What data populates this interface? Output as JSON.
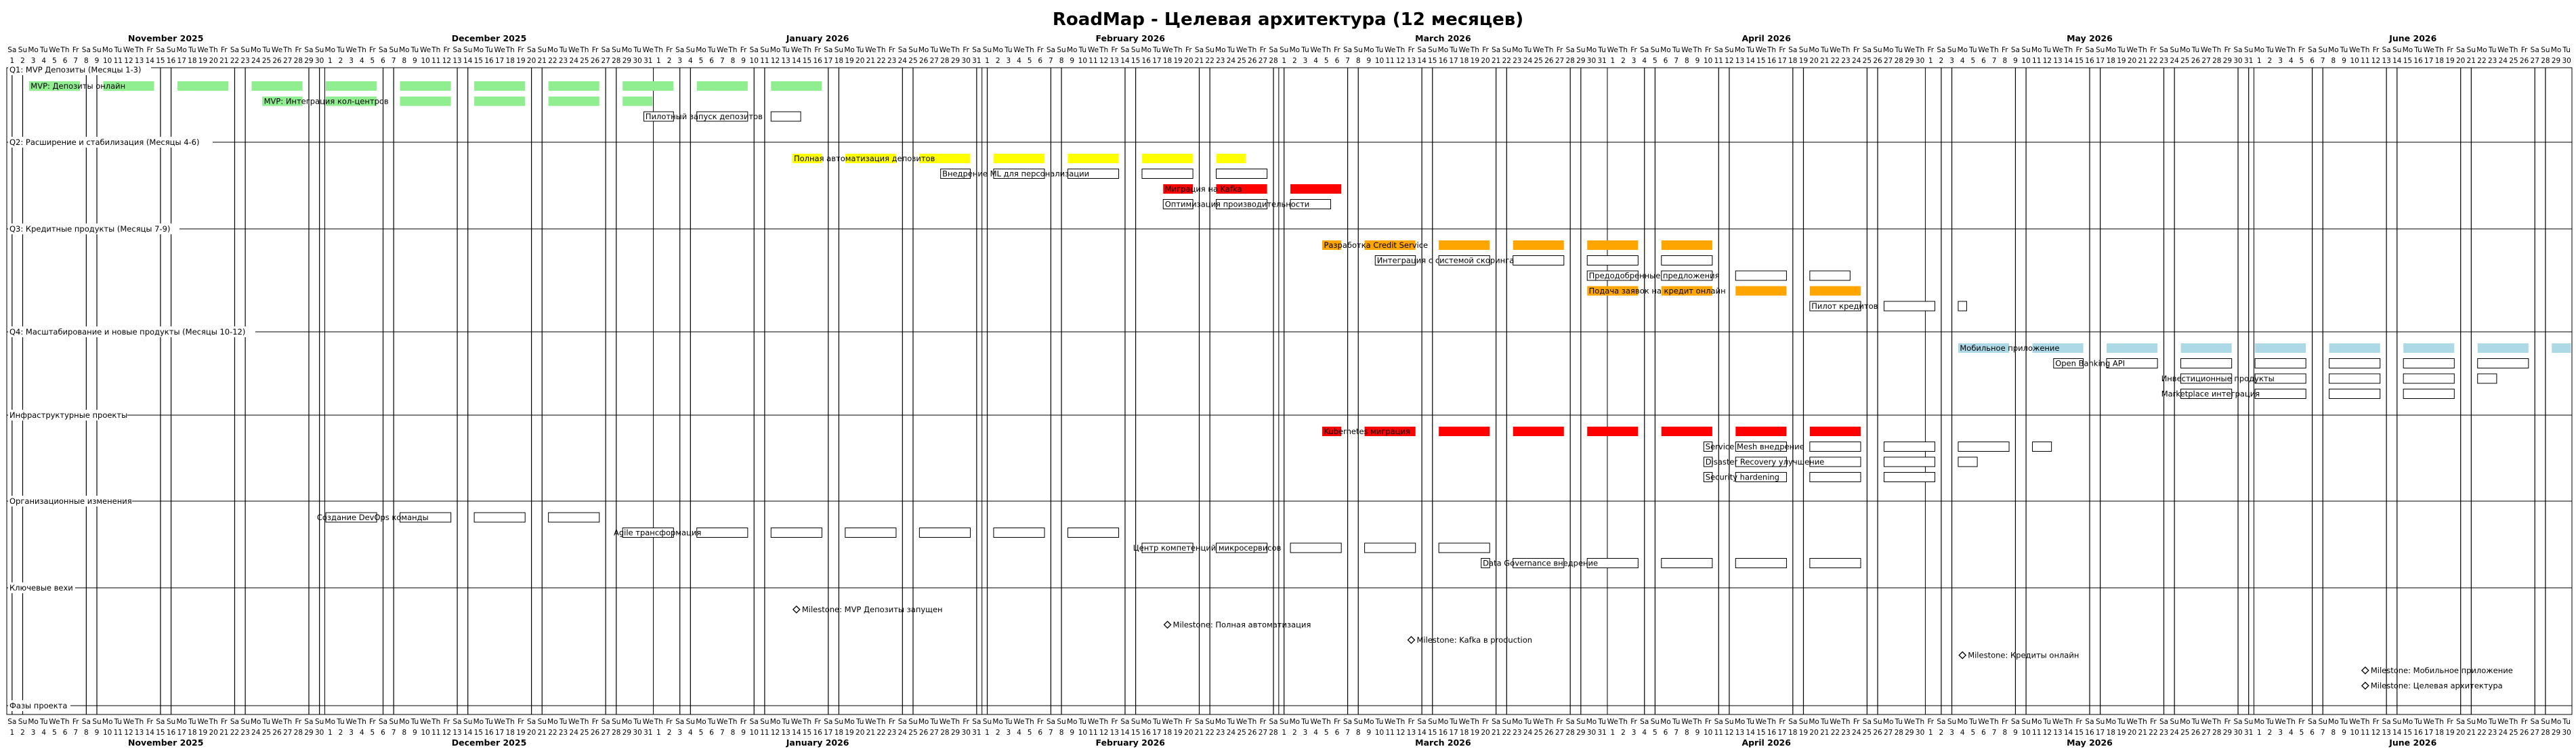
{
  "title": "RoadMap - Целевая архитектура (12 месяцев)",
  "timeline": {
    "start": "2025-11-01",
    "end": "2026-06-30",
    "weekday_labels": [
      "Sa",
      "Su",
      "Mo",
      "Tu",
      "We",
      "Th",
      "Fr"
    ],
    "months": [
      "November 2025",
      "December 2025",
      "January 2026",
      "February 2026",
      "March 2026",
      "April 2026",
      "May 2026",
      "June 2026"
    ]
  },
  "colors": {
    "green": "#90ee90",
    "yellow": "#ffff00",
    "red": "#ff0000",
    "orange": "#ffa500",
    "lightblue": "#add8e6",
    "none": "#ffffff",
    "weekend_line": "#000000",
    "border": "#000000"
  },
  "sections": [
    {
      "name": "Q1: MVP Депозиты (Месяцы 1-3)",
      "tasks": [
        {
          "label": "MVP: Депозиты онлайн",
          "start": "2025-11-03",
          "end": "2026-01-18",
          "color": "green"
        },
        {
          "label": "MVP: Интеграция кол-центров",
          "start": "2025-11-25",
          "end": "2025-12-31",
          "color": "green"
        },
        {
          "label": "Пилотный запуск депозитов",
          "start": "2025-12-31",
          "end": "2026-01-14",
          "color": "none"
        }
      ]
    },
    {
      "name": "Q2: Расширение и стабилизация (Месяцы 4-6)",
      "tasks": [
        {
          "label": "Полная автоматизация депозитов",
          "start": "2026-01-14",
          "end": "2026-02-25",
          "color": "yellow"
        },
        {
          "label": "Внедрение ML для персонализации",
          "start": "2026-01-28",
          "end": "2026-02-28",
          "color": "none"
        },
        {
          "label": "Миграция на Kafka",
          "start": "2026-02-18",
          "end": "2026-03-08",
          "color": "red"
        },
        {
          "label": "Оптимизация производительности",
          "start": "2026-02-18",
          "end": "2026-03-05",
          "color": "none"
        }
      ]
    },
    {
      "name": "Q3: Кредитные продукты (Месяцы 7-9)",
      "tasks": [
        {
          "label": "Разработка Credit Service",
          "start": "2026-03-05",
          "end": "2026-04-10",
          "color": "orange"
        },
        {
          "label": "Интеграция с системой скоринга",
          "start": "2026-03-10",
          "end": "2026-04-10",
          "color": "none"
        },
        {
          "label": "Предодобренные предложения",
          "start": "2026-03-30",
          "end": "2026-04-23",
          "color": "none"
        },
        {
          "label": "Подача заявок на кредит онлайн",
          "start": "2026-03-30",
          "end": "2026-04-26",
          "color": "orange"
        },
        {
          "label": "Пилот кредитов",
          "start": "2026-04-20",
          "end": "2026-05-04",
          "color": "none"
        }
      ]
    },
    {
      "name": "Q4: Масштабирование и новые продукты (Месяцы 10-12)",
      "tasks": [
        {
          "label": "Мобильное приложение",
          "start": "2026-05-04",
          "end": "2026-06-30",
          "color": "lightblue"
        },
        {
          "label": "Open Banking API",
          "start": "2026-05-13",
          "end": "2026-06-28",
          "color": "none"
        },
        {
          "label": "Инвестиционные продукты",
          "start": "2026-05-23",
          "end": "2026-06-23",
          "color": "none"
        },
        {
          "label": "Marketplace интеграция",
          "start": "2026-05-23",
          "end": "2026-06-19",
          "color": "none"
        }
      ]
    },
    {
      "name": "Инфраструктурные проекты",
      "tasks": [
        {
          "label": "Kubernetes миграция",
          "start": "2026-03-05",
          "end": "2026-04-26",
          "color": "red"
        },
        {
          "label": "Service Mesh внедрение",
          "start": "2026-04-10",
          "end": "2026-05-12",
          "color": "none"
        },
        {
          "label": "Disaster Recovery улучшение",
          "start": "2026-04-10",
          "end": "2026-05-05",
          "color": "none"
        },
        {
          "label": "Security hardening",
          "start": "2026-04-10",
          "end": "2026-05-01",
          "color": "none"
        }
      ]
    },
    {
      "name": "Организационные изменения",
      "tasks": [
        {
          "label": "Создание DevOps команды",
          "start": "2025-11-30",
          "end": "2025-12-28",
          "color": "none"
        },
        {
          "label": "Agile трансформация",
          "start": "2025-12-28",
          "end": "2026-02-15",
          "color": "none"
        },
        {
          "label": "Центр компетенций микросервисов",
          "start": "2026-02-15",
          "end": "2026-03-20",
          "color": "none"
        },
        {
          "label": "Data Governance внедрение",
          "start": "2026-03-20",
          "end": "2026-04-26",
          "color": "none"
        }
      ]
    },
    {
      "name": "Ключевые вехи",
      "tasks": [
        {
          "label": "Milestone: MVP Депозиты запущен",
          "date": "2026-01-14",
          "milestone": true
        },
        {
          "label": "Milestone: Полная автоматизация",
          "date": "2026-02-18",
          "milestone": true
        },
        {
          "label": "Milestone: Kafka в production",
          "date": "2026-03-13",
          "milestone": true
        },
        {
          "label": "Milestone: Кредиты онлайн",
          "date": "2026-05-04",
          "milestone": true
        },
        {
          "label": "Milestone: Мобильное приложение",
          "date": "2026-06-11",
          "milestone": true
        },
        {
          "label": "Milestone: Целевая архитектура",
          "date": "2026-06-11",
          "milestone": true
        }
      ]
    },
    {
      "name": "Фазы проекта",
      "tasks": []
    }
  ]
}
